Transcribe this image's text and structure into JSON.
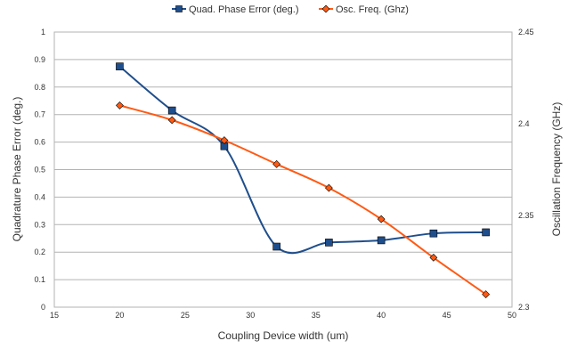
{
  "chart_data": {
    "type": "line",
    "legend_position": "top-center",
    "grid": true,
    "xlabel": "Coupling Device width (um)",
    "ylabel": "Quadrature Phase Error (deg.)",
    "y2label": "Oscillation Frequency (GHz)",
    "xlim": [
      15,
      50
    ],
    "xticks": [
      15,
      20,
      25,
      30,
      35,
      40,
      45,
      50
    ],
    "ylim": [
      0,
      1
    ],
    "yticks": [
      0,
      0.1,
      0.2,
      0.3,
      0.4,
      0.5,
      0.6,
      0.7,
      0.8,
      0.9,
      1
    ],
    "y2lim": [
      2.3,
      2.45
    ],
    "y2ticks": [
      2.3,
      2.35,
      2.4,
      2.45
    ],
    "series": [
      {
        "name": "Quad. Phase Error (deg.)",
        "axis": "left",
        "marker": "square",
        "color": "#1f4e8c",
        "marker_fill": "#1f4e8c",
        "x": [
          20,
          24,
          28,
          32,
          36,
          40,
          44,
          48
        ],
        "y": [
          0.875,
          0.715,
          0.585,
          0.22,
          0.235,
          0.243,
          0.268,
          0.272
        ]
      },
      {
        "name": "Osc. Freq. (Ghz)",
        "axis": "right",
        "marker": "diamond",
        "color": "#ff5a14",
        "marker_fill": "#ff5a14",
        "x": [
          20,
          24,
          28,
          32,
          36,
          40,
          44,
          48
        ],
        "y": [
          2.41,
          2.402,
          2.391,
          2.378,
          2.365,
          2.348,
          2.327,
          2.307
        ]
      }
    ]
  }
}
